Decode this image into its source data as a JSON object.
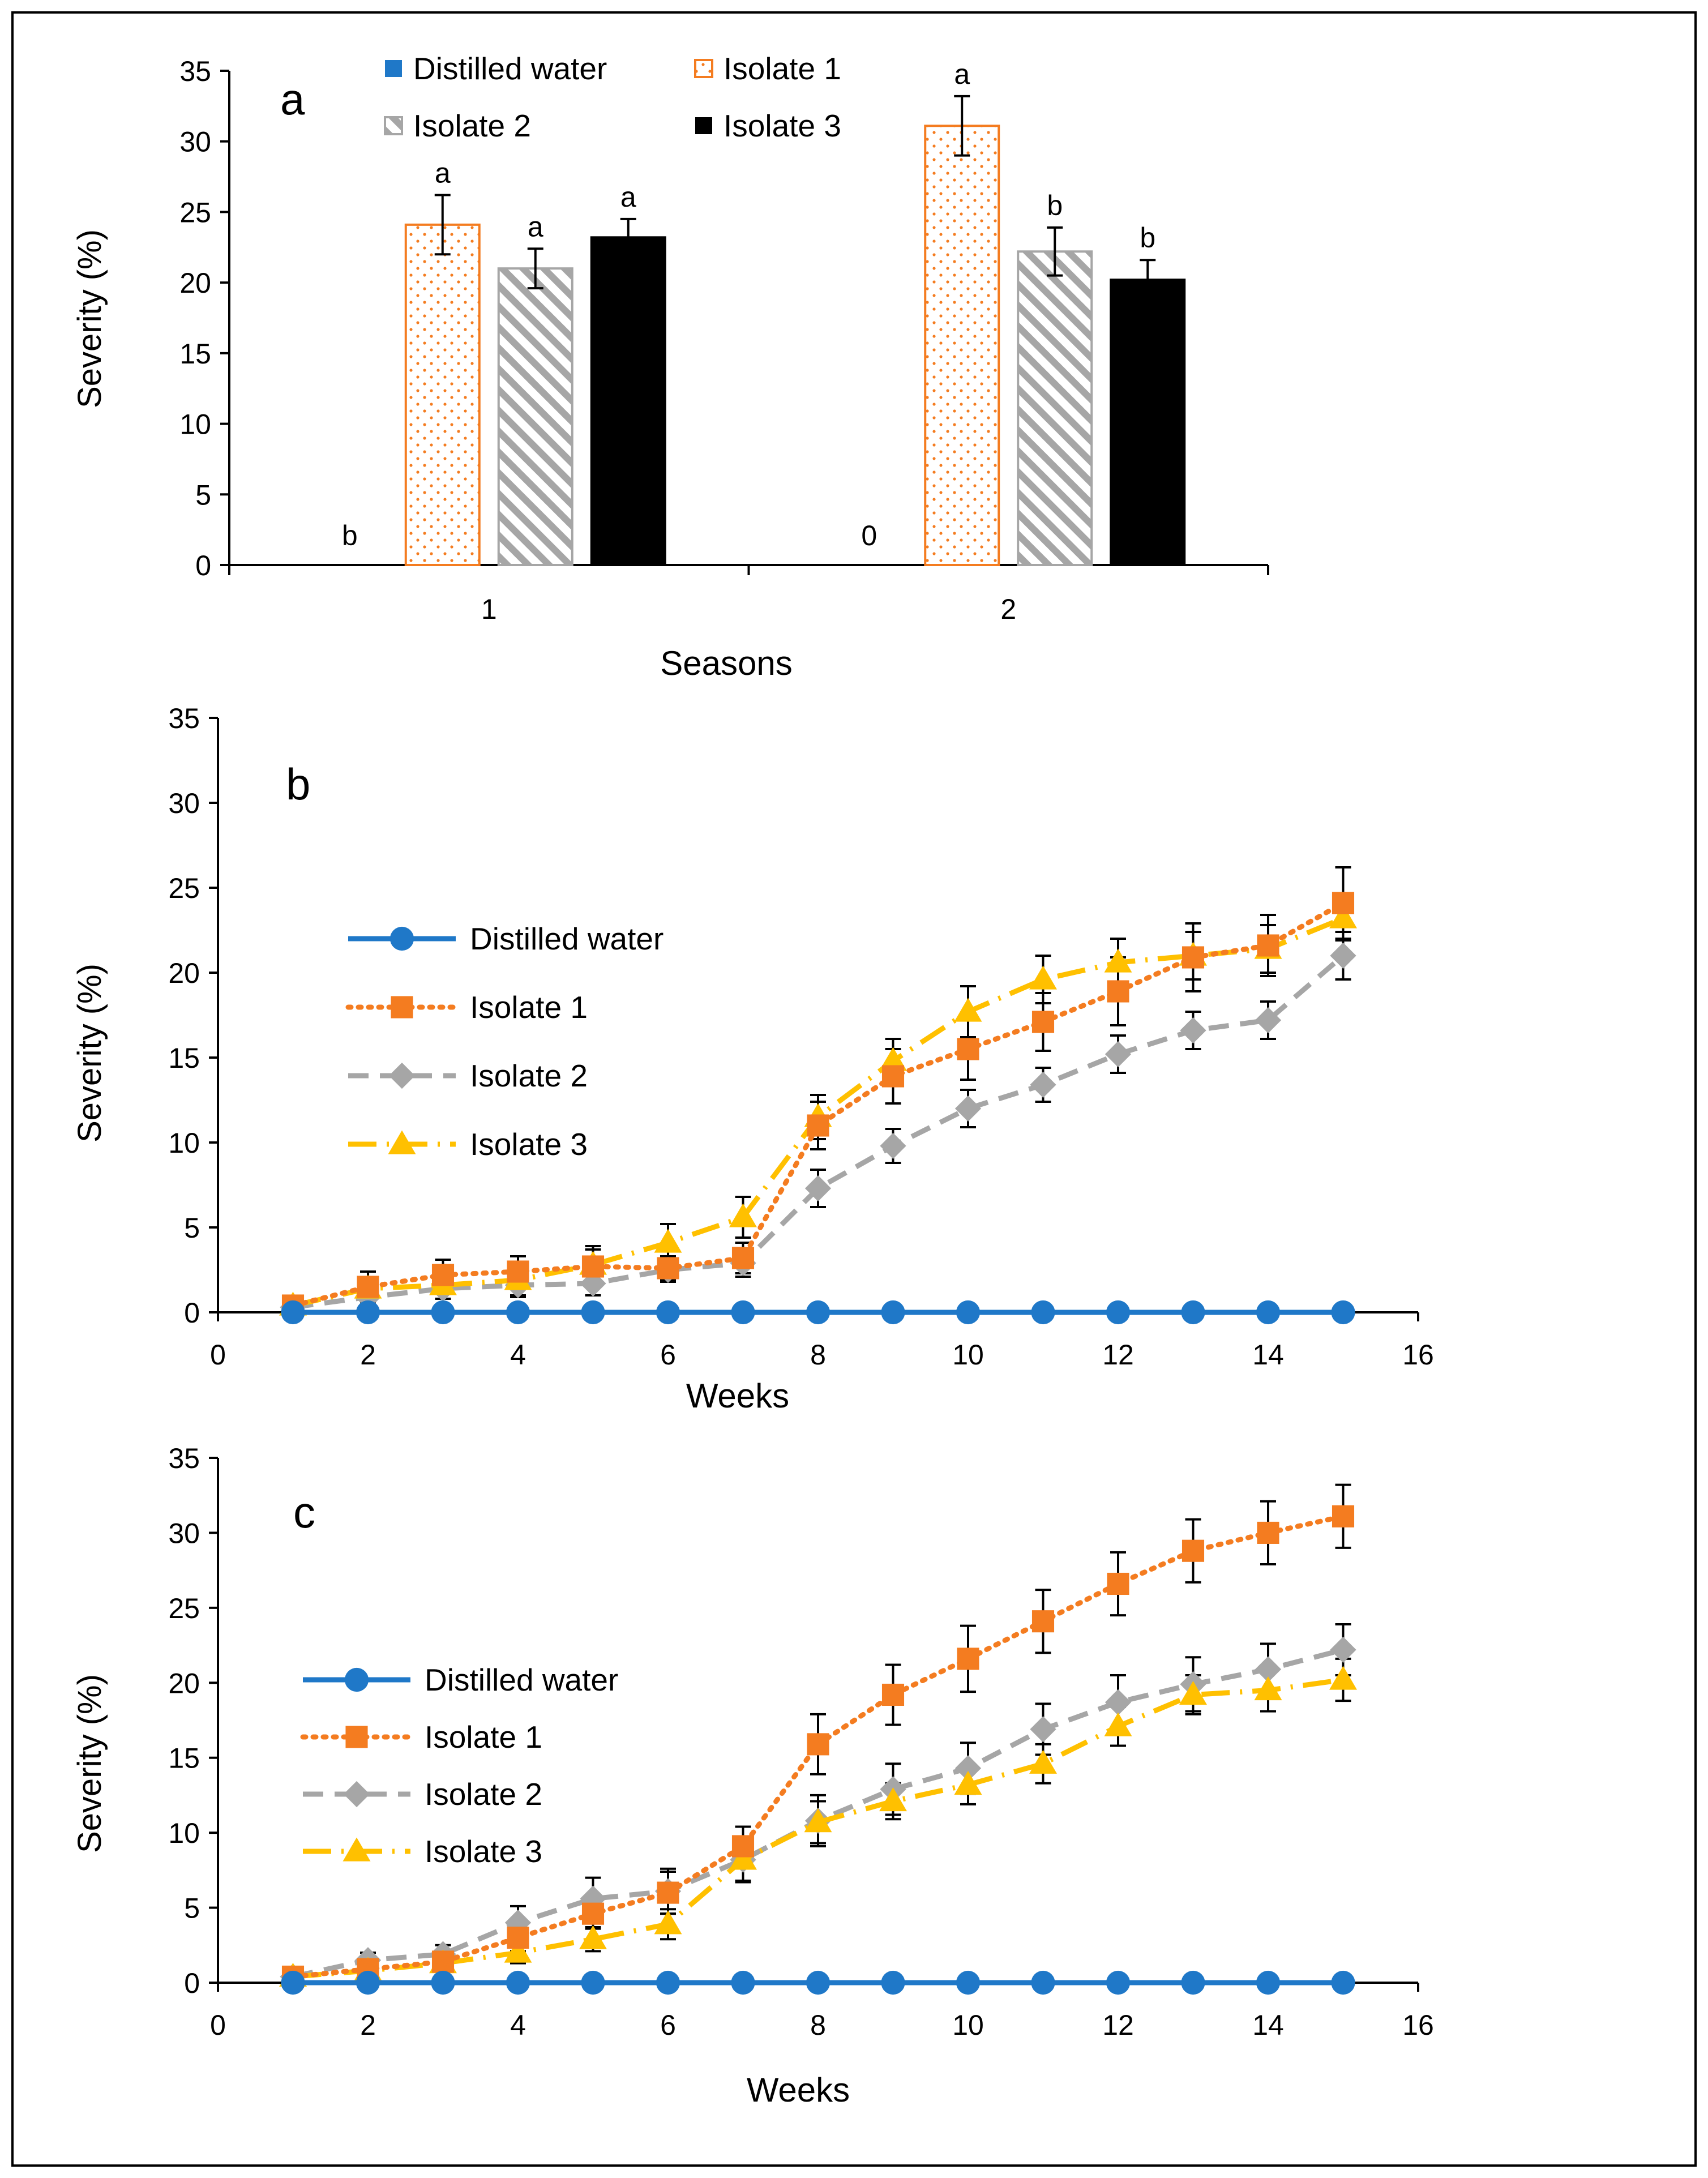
{
  "chart_data": [
    {
      "panel_label": "a",
      "type": "bar",
      "xlabel": "Seasons",
      "ylabel": "Severity (%)",
      "ylim": [
        0,
        35
      ],
      "yticks": [
        "0",
        "5",
        "10",
        "15",
        "20",
        "25",
        "30",
        "35"
      ],
      "categories": [
        "1",
        "2"
      ],
      "legend_position": "top",
      "series": [
        {
          "name": "Distilled water",
          "key": "water",
          "values": [
            0,
            0
          ],
          "errors": [
            0,
            0
          ],
          "letters": [
            "b",
            "0"
          ]
        },
        {
          "name": "Isolate 1",
          "key": "iso1",
          "values": [
            24.1,
            31.1
          ],
          "errors": [
            2.1,
            2.1
          ],
          "letters": [
            "a",
            "a"
          ]
        },
        {
          "name": "Isolate 2",
          "key": "iso2",
          "values": [
            21.0,
            22.2
          ],
          "errors": [
            1.4,
            1.7
          ],
          "letters": [
            "a",
            "b"
          ]
        },
        {
          "name": "Isolate 3",
          "key": "iso3",
          "values": [
            23.2,
            20.2
          ],
          "errors": [
            1.3,
            1.4
          ],
          "letters": [
            "a",
            "b"
          ]
        }
      ]
    },
    {
      "panel_label": "b",
      "type": "line",
      "xlabel": "Weeks",
      "ylabel": "Severity (%)",
      "xlim": [
        0,
        16
      ],
      "ylim": [
        0,
        35
      ],
      "xticks": [
        "0",
        "2",
        "4",
        "6",
        "8",
        "10",
        "12",
        "14",
        "16"
      ],
      "yticks": [
        "0",
        "5",
        "10",
        "15",
        "20",
        "25",
        "30",
        "35"
      ],
      "legend_position": "middle-left",
      "x": [
        1,
        2,
        3,
        4,
        5,
        6,
        7,
        8,
        9,
        10,
        11,
        12,
        13,
        14,
        15
      ],
      "series": [
        {
          "name": "Distilled water",
          "key": "water",
          "values": [
            0,
            0,
            0,
            0,
            0,
            0,
            0,
            0,
            0,
            0,
            0,
            0,
            0,
            0,
            0
          ],
          "errors": [
            0,
            0,
            0,
            0,
            0,
            0,
            0,
            0,
            0,
            0,
            0,
            0,
            0,
            0,
            0
          ]
        },
        {
          "name": "Isolate 1",
          "key": "iso1",
          "values": [
            0.4,
            1.5,
            2.2,
            2.4,
            2.7,
            2.6,
            3.2,
            11.0,
            13.9,
            15.5,
            17.1,
            18.9,
            20.9,
            21.6,
            24.1
          ],
          "errors": [
            0.3,
            0.9,
            0.9,
            0.9,
            1.0,
            0.7,
            0.9,
            1.4,
            1.6,
            1.8,
            1.7,
            2.0,
            2.0,
            1.8,
            2.1
          ]
        },
        {
          "name": "Isolate 2",
          "key": "iso2",
          "values": [
            0.3,
            0.9,
            1.4,
            1.6,
            1.7,
            2.5,
            2.9,
            7.3,
            9.8,
            12.0,
            13.4,
            15.2,
            16.6,
            17.2,
            21.0
          ],
          "errors": [
            0.2,
            0.5,
            0.6,
            0.6,
            0.7,
            0.7,
            0.8,
            1.1,
            1.0,
            1.1,
            1.0,
            1.1,
            1.1,
            1.1,
            1.4
          ]
        },
        {
          "name": "Isolate 3",
          "key": "iso3",
          "values": [
            0.4,
            1.4,
            1.6,
            1.9,
            2.8,
            4.1,
            5.6,
            11.5,
            14.8,
            17.7,
            19.6,
            20.6,
            21.0,
            21.4,
            23.2
          ],
          "errors": [
            0.3,
            0.6,
            0.8,
            1.0,
            1.1,
            1.1,
            1.2,
            1.3,
            1.3,
            1.5,
            1.4,
            1.4,
            1.4,
            1.4,
            1.3
          ]
        }
      ]
    },
    {
      "panel_label": "c",
      "type": "line",
      "xlabel": "Weeks",
      "ylabel": "Severity (%)",
      "xlim": [
        0,
        16
      ],
      "ylim": [
        0,
        35
      ],
      "xticks": [
        "0",
        "2",
        "4",
        "6",
        "8",
        "10",
        "12",
        "14",
        "16"
      ],
      "yticks": [
        "0",
        "5",
        "10",
        "15",
        "20",
        "25",
        "30",
        "35"
      ],
      "legend_position": "middle-left",
      "x": [
        1,
        2,
        3,
        4,
        5,
        6,
        7,
        8,
        9,
        10,
        11,
        12,
        13,
        14,
        15
      ],
      "series": [
        {
          "name": "Distilled water",
          "key": "water",
          "values": [
            0,
            0,
            0,
            0,
            0,
            0,
            0,
            0,
            0,
            0,
            0,
            0,
            0,
            0,
            0
          ],
          "errors": [
            0,
            0,
            0,
            0,
            0,
            0,
            0,
            0,
            0,
            0,
            0,
            0,
            0,
            0,
            0
          ]
        },
        {
          "name": "Isolate 1",
          "key": "iso1",
          "values": [
            0.4,
            0.9,
            1.4,
            3.0,
            4.6,
            6.0,
            9.1,
            15.9,
            19.2,
            21.6,
            24.1,
            26.6,
            28.8,
            30.0,
            31.1
          ],
          "errors": [
            0.2,
            0.5,
            0.6,
            0.9,
            1.0,
            1.4,
            1.3,
            2.0,
            2.0,
            2.2,
            2.1,
            2.1,
            2.1,
            2.1,
            2.1
          ]
        },
        {
          "name": "Isolate 2",
          "key": "iso2",
          "values": [
            0.4,
            1.5,
            1.9,
            4.0,
            5.6,
            6.1,
            8.2,
            10.8,
            12.9,
            14.3,
            16.9,
            18.7,
            19.9,
            20.9,
            22.2
          ],
          "errors": [
            0.2,
            0.5,
            0.6,
            1.1,
            1.4,
            1.5,
            1.5,
            1.7,
            1.7,
            1.7,
            1.7,
            1.8,
            1.8,
            1.7,
            1.7
          ]
        },
        {
          "name": "Isolate 3",
          "key": "iso3",
          "values": [
            0.4,
            0.8,
            1.3,
            2.0,
            2.9,
            3.9,
            8.2,
            10.7,
            12.1,
            13.2,
            14.6,
            17.1,
            19.2,
            19.5,
            20.2
          ],
          "errors": [
            0.2,
            0.4,
            0.5,
            0.7,
            0.8,
            1.0,
            1.4,
            1.4,
            1.2,
            1.3,
            1.3,
            1.3,
            1.3,
            1.4,
            1.4
          ]
        }
      ]
    }
  ],
  "colors": {
    "water": "#1f78c8",
    "iso1": "#f47c20",
    "iso2": "#a6a6a6",
    "iso3": "#ffc000",
    "black": "#000000"
  }
}
